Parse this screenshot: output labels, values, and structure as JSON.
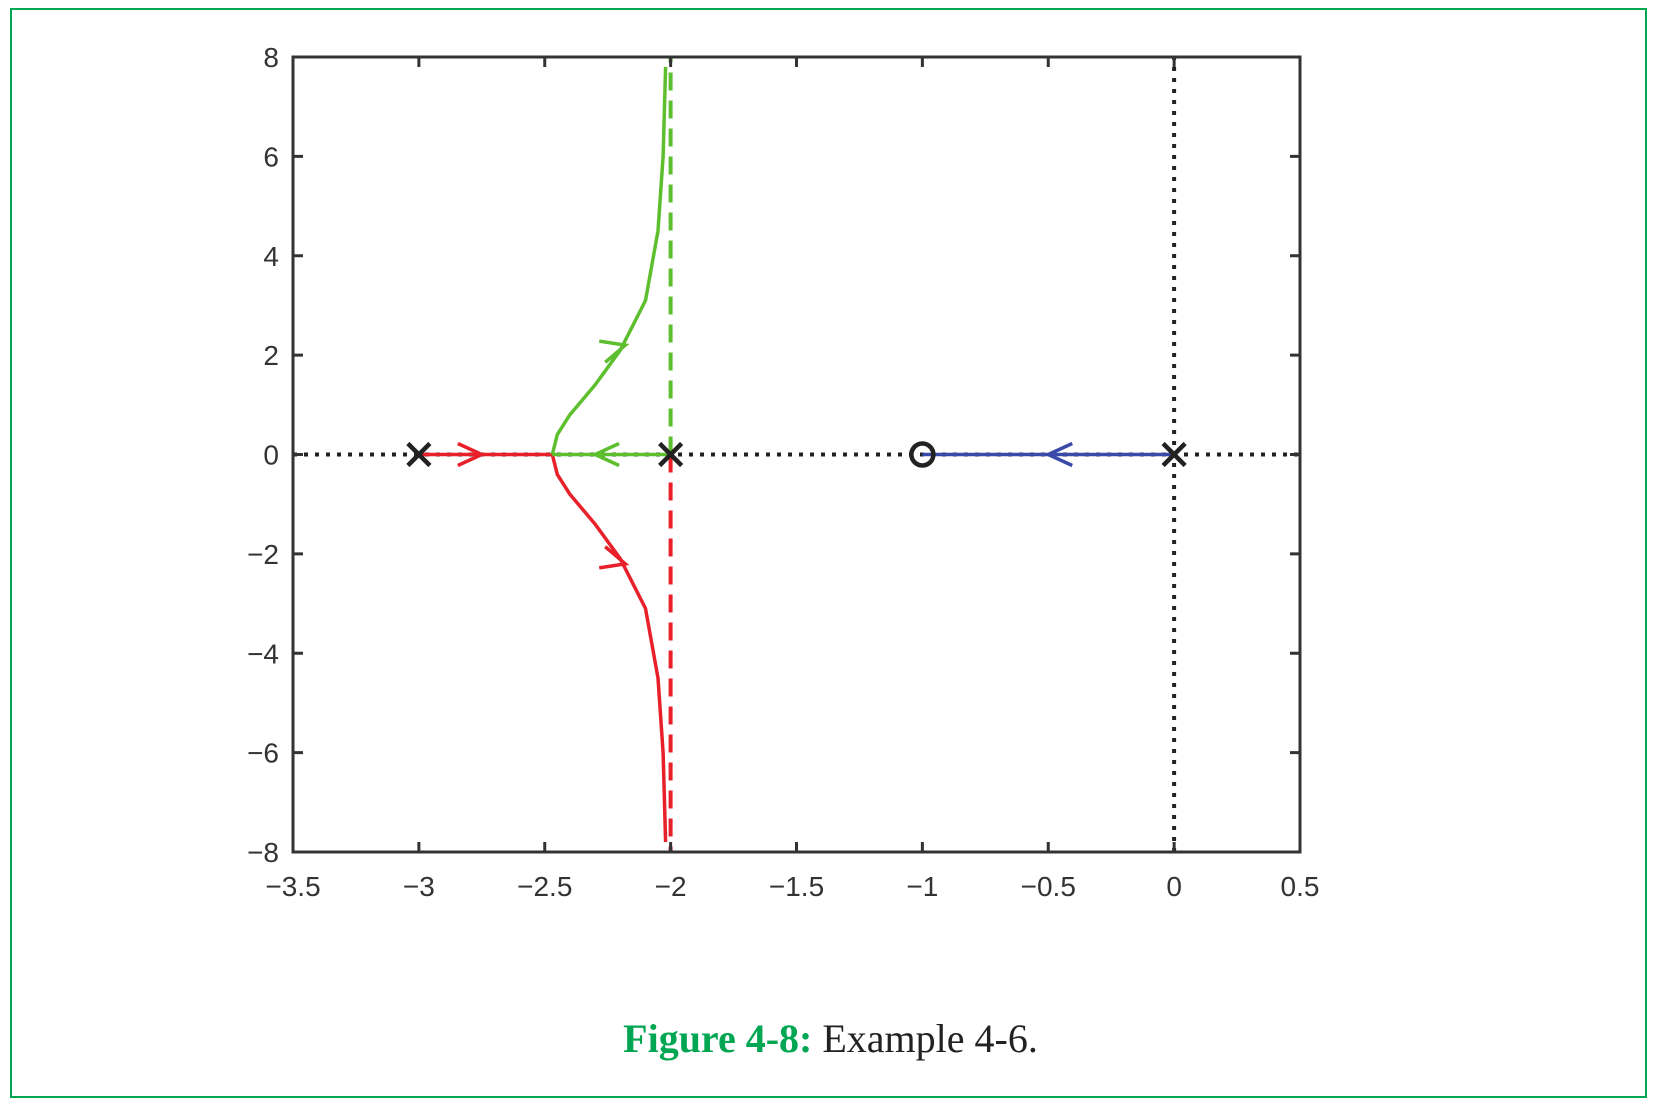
{
  "caption": {
    "label": "Figure 4-8:",
    "text": " Example 4-6."
  },
  "colors": {
    "frame": "#00a651",
    "red": "#e8202a",
    "green": "#5dbf2e",
    "blue": "#3a4aa8",
    "black": "#222222",
    "axis": "#333333"
  },
  "chart_data": {
    "type": "line",
    "title": "",
    "xlabel": "",
    "ylabel": "",
    "xlim": [
      -3.5,
      0.5
    ],
    "ylim": [
      -8,
      8
    ],
    "xticks": [
      -3.5,
      -3,
      -2.5,
      -2,
      -1.5,
      -1,
      -0.5,
      0,
      0.5
    ],
    "xtick_labels": [
      "−3.5",
      "−3",
      "−2.5",
      "−2",
      "−1.5",
      "−1",
      "−0.5",
      "0",
      "0.5"
    ],
    "yticks": [
      -8,
      -6,
      -4,
      -2,
      0,
      2,
      4,
      6,
      8
    ],
    "ytick_labels": [
      "−8",
      "−6",
      "−4",
      "−2",
      "0",
      "2",
      "4",
      "6",
      "8"
    ],
    "grid": false,
    "poles": [
      [
        -3,
        0
      ],
      [
        -2,
        0
      ],
      [
        0,
        0
      ]
    ],
    "zeros": [
      [
        -1,
        0
      ]
    ],
    "series": [
      {
        "color": "red",
        "style": "solid",
        "x": [
          -3,
          -2.47
        ],
        "y": [
          0,
          0
        ]
      },
      {
        "color": "red",
        "style": "solid",
        "x": [
          -2.47,
          -2.45,
          -2.4,
          -2.3,
          -2.2,
          -2.1,
          -2.05,
          -2.03,
          -2.02
        ],
        "y": [
          0,
          -0.4,
          -0.8,
          -1.4,
          -2.1,
          -3.1,
          -4.5,
          -6.0,
          -7.8
        ]
      },
      {
        "color": "green",
        "style": "solid",
        "x": [
          -2,
          -2.47
        ],
        "y": [
          0,
          0
        ]
      },
      {
        "color": "green",
        "style": "solid",
        "x": [
          -2.47,
          -2.45,
          -2.4,
          -2.3,
          -2.2,
          -2.1,
          -2.05,
          -2.03,
          -2.02
        ],
        "y": [
          0,
          0.4,
          0.8,
          1.4,
          2.1,
          3.1,
          4.5,
          6.0,
          7.8
        ]
      },
      {
        "color": "blue",
        "style": "solid",
        "x": [
          0,
          -1
        ],
        "y": [
          0,
          0
        ]
      },
      {
        "color": "green",
        "style": "dashed",
        "x": [
          -2,
          -2
        ],
        "y": [
          0,
          8
        ]
      },
      {
        "color": "red",
        "style": "dashed",
        "x": [
          -2,
          -2
        ],
        "y": [
          0,
          -8
        ]
      },
      {
        "color": "black",
        "style": "dotted",
        "x": [
          -3.5,
          0.5
        ],
        "y": [
          0,
          0
        ]
      },
      {
        "color": "black",
        "style": "dotted",
        "x": [
          0,
          0
        ],
        "y": [
          -8,
          8
        ]
      }
    ],
    "arrows": [
      {
        "color": "red",
        "at": [
          -2.75,
          0
        ],
        "dir": [
          1,
          0
        ]
      },
      {
        "color": "green",
        "at": [
          -2.3,
          0
        ],
        "dir": [
          -1,
          0
        ]
      },
      {
        "color": "blue",
        "at": [
          -0.5,
          0
        ],
        "dir": [
          -1,
          0
        ]
      },
      {
        "color": "green",
        "at": [
          -2.18,
          2.2
        ],
        "dir": [
          0.7,
          1
        ]
      },
      {
        "color": "red",
        "at": [
          -2.18,
          -2.2
        ],
        "dir": [
          0.7,
          -1
        ]
      }
    ]
  }
}
